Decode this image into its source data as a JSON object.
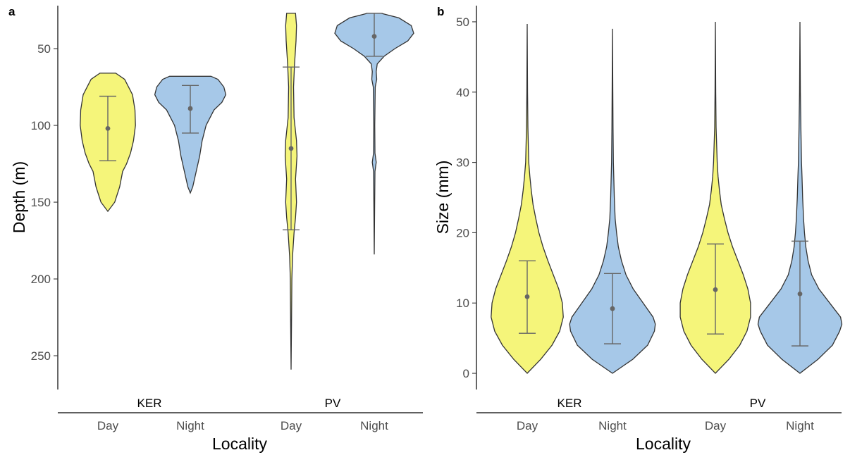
{
  "colors": {
    "day": "#f5f57a",
    "night": "#a6c8e8"
  },
  "chart_data": [
    {
      "type": "violin",
      "panel": "a",
      "ylabel": "Depth (m)",
      "xlabel": "Locality",
      "y_reversed": true,
      "ylim": [
        22,
        272
      ],
      "yticks": [
        50,
        100,
        150,
        200,
        250
      ],
      "groups": [
        "KER",
        "PV"
      ],
      "categories": [
        "Day",
        "Night",
        "Day",
        "Night"
      ],
      "violins": [
        {
          "group": "KER",
          "category": "Day",
          "color": "day",
          "profile": [
            [
              66,
              0.16
            ],
            [
              70,
              0.34
            ],
            [
              80,
              0.5
            ],
            [
              90,
              0.55
            ],
            [
              100,
              0.56
            ],
            [
              110,
              0.52
            ],
            [
              118,
              0.46
            ],
            [
              125,
              0.38
            ],
            [
              130,
              0.3
            ],
            [
              140,
              0.24
            ],
            [
              150,
              0.14
            ],
            [
              156,
              0
            ]
          ],
          "mean": 102,
          "lower": 81,
          "upper": 123
        },
        {
          "group": "KER",
          "category": "Night",
          "color": "night",
          "profile": [
            [
              68,
              0.42
            ],
            [
              70,
              0.56
            ],
            [
              75,
              0.68
            ],
            [
              80,
              0.72
            ],
            [
              85,
              0.64
            ],
            [
              90,
              0.48
            ],
            [
              100,
              0.32
            ],
            [
              110,
              0.24
            ],
            [
              120,
              0.19
            ],
            [
              130,
              0.12
            ],
            [
              140,
              0.05
            ],
            [
              144,
              0
            ]
          ],
          "mean": 89,
          "lower": 74,
          "upper": 105
        },
        {
          "group": "PV",
          "category": "Day",
          "color": "day",
          "profile": [
            [
              27,
              0.09
            ],
            [
              35,
              0.11
            ],
            [
              45,
              0.1
            ],
            [
              60,
              0.07
            ],
            [
              75,
              0.05
            ],
            [
              95,
              0.06
            ],
            [
              110,
              0.11
            ],
            [
              120,
              0.12
            ],
            [
              135,
              0.09
            ],
            [
              150,
              0.11
            ],
            [
              160,
              0.09
            ],
            [
              170,
              0.06
            ],
            [
              185,
              0.03
            ],
            [
              200,
              0.015
            ],
            [
              230,
              0.008
            ],
            [
              259,
              0
            ]
          ],
          "mean": 115,
          "lower": 62,
          "upper": 168
        },
        {
          "group": "PV",
          "category": "Night",
          "color": "night",
          "profile": [
            [
              27,
              0.14
            ],
            [
              30,
              0.5
            ],
            [
              35,
              0.75
            ],
            [
              40,
              0.8
            ],
            [
              45,
              0.68
            ],
            [
              50,
              0.42
            ],
            [
              55,
              0.2
            ],
            [
              60,
              0.06
            ],
            [
              65,
              0.04
            ],
            [
              70,
              0.05
            ],
            [
              75,
              0.02
            ],
            [
              100,
              0.01
            ],
            [
              118,
              0.015
            ],
            [
              124,
              0.04
            ],
            [
              130,
              0.015
            ],
            [
              150,
              0.008
            ],
            [
              184,
              0
            ]
          ],
          "mean": 42,
          "lower": 27,
          "upper": 55
        }
      ]
    },
    {
      "type": "violin",
      "panel": "b",
      "ylabel": "Size (mm)",
      "xlabel": "Locality",
      "y_reversed": false,
      "ylim": [
        -2.3,
        52.3
      ],
      "yticks": [
        0,
        10,
        20,
        30,
        40,
        50
      ],
      "groups": [
        "KER",
        "PV"
      ],
      "categories": [
        "Day",
        "Night",
        "Day",
        "Night"
      ],
      "violins": [
        {
          "group": "KER",
          "category": "Day",
          "color": "day",
          "profile": [
            [
              0,
              0
            ],
            [
              2,
              0.3
            ],
            [
              4,
              0.55
            ],
            [
              6,
              0.72
            ],
            [
              8,
              0.8
            ],
            [
              10,
              0.78
            ],
            [
              12,
              0.7
            ],
            [
              14,
              0.58
            ],
            [
              16,
              0.46
            ],
            [
              18,
              0.35
            ],
            [
              20,
              0.26
            ],
            [
              22,
              0.19
            ],
            [
              24,
              0.13
            ],
            [
              26,
              0.09
            ],
            [
              28,
              0.06
            ],
            [
              30,
              0.035
            ],
            [
              35,
              0.015
            ],
            [
              40,
              0.008
            ],
            [
              49.7,
              0
            ]
          ],
          "mean": 10.9,
          "lower": 5.7,
          "upper": 16
        },
        {
          "group": "KER",
          "category": "Night",
          "color": "night",
          "profile": [
            [
              0,
              0
            ],
            [
              2,
              0.45
            ],
            [
              4,
              0.78
            ],
            [
              6,
              0.93
            ],
            [
              7,
              0.95
            ],
            [
              8,
              0.9
            ],
            [
              10,
              0.68
            ],
            [
              12,
              0.46
            ],
            [
              14,
              0.3
            ],
            [
              16,
              0.2
            ],
            [
              18,
              0.13
            ],
            [
              20,
              0.09
            ],
            [
              22,
              0.06
            ],
            [
              25,
              0.04
            ],
            [
              30,
              0.02
            ],
            [
              35,
              0.012
            ],
            [
              40,
              0.008
            ],
            [
              49,
              0
            ]
          ],
          "mean": 9.2,
          "lower": 4.2,
          "upper": 14.2
        },
        {
          "group": "PV",
          "category": "Day",
          "color": "day",
          "profile": [
            [
              0,
              0
            ],
            [
              2,
              0.3
            ],
            [
              4,
              0.54
            ],
            [
              6,
              0.7
            ],
            [
              8,
              0.78
            ],
            [
              10,
              0.78
            ],
            [
              12,
              0.72
            ],
            [
              14,
              0.62
            ],
            [
              16,
              0.5
            ],
            [
              18,
              0.38
            ],
            [
              20,
              0.28
            ],
            [
              22,
              0.2
            ],
            [
              24,
              0.13
            ],
            [
              26,
              0.09
            ],
            [
              28,
              0.06
            ],
            [
              30,
              0.04
            ],
            [
              35,
              0.015
            ],
            [
              40,
              0.008
            ],
            [
              50,
              0
            ]
          ],
          "mean": 11.9,
          "lower": 5.6,
          "upper": 18.4
        },
        {
          "group": "PV",
          "category": "Night",
          "color": "night",
          "profile": [
            [
              0,
              0
            ],
            [
              2,
              0.4
            ],
            [
              4,
              0.72
            ],
            [
              6,
              0.88
            ],
            [
              7,
              0.93
            ],
            [
              8,
              0.9
            ],
            [
              10,
              0.66
            ],
            [
              12,
              0.42
            ],
            [
              14,
              0.26
            ],
            [
              16,
              0.18
            ],
            [
              18,
              0.13
            ],
            [
              20,
              0.1
            ],
            [
              22,
              0.08
            ],
            [
              25,
              0.06
            ],
            [
              28,
              0.045
            ],
            [
              30,
              0.035
            ],
            [
              35,
              0.02
            ],
            [
              40,
              0.01
            ],
            [
              50,
              0
            ]
          ],
          "mean": 11.3,
          "lower": 3.9,
          "upper": 18.8
        }
      ]
    }
  ]
}
